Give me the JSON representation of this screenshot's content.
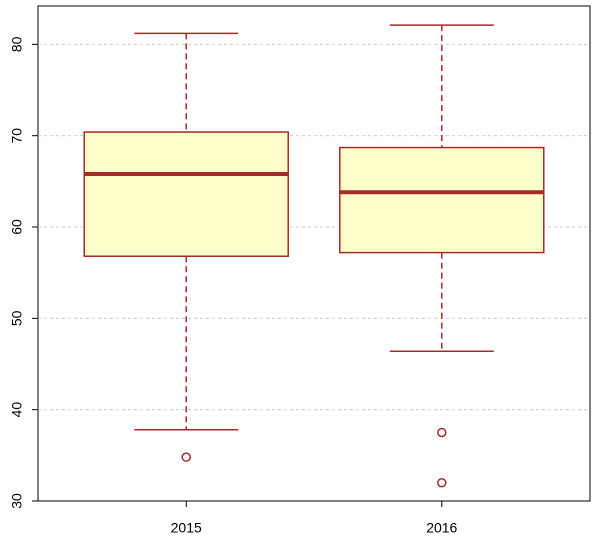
{
  "chart_data": {
    "type": "box",
    "categories": [
      "2015",
      "2016"
    ],
    "boxes": [
      {
        "whislo": 37.8,
        "q1": 56.8,
        "med": 65.8,
        "q3": 70.4,
        "whishi": 81.2,
        "fliers": [
          34.8
        ]
      },
      {
        "whislo": 46.4,
        "q1": 57.2,
        "med": 63.8,
        "q3": 68.7,
        "whishi": 82.1,
        "fliers": [
          37.5,
          32.0
        ]
      }
    ],
    "fill_color": "#ffffcc",
    "line_color": "#a52a2a",
    "ylim": [
      30,
      84.2
    ],
    "yticks": [
      30,
      40,
      50,
      60,
      70,
      80
    ],
    "grid": true
  }
}
